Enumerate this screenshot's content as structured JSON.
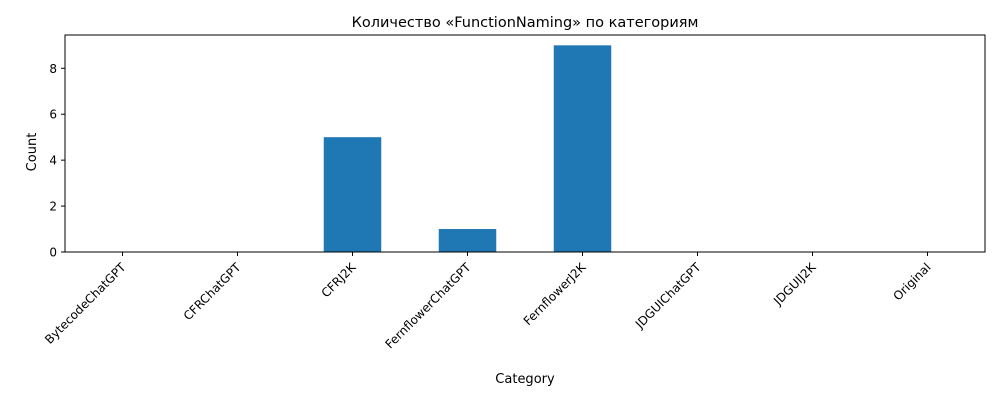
{
  "chart_data": {
    "type": "bar",
    "title": "Количество «FunctionNaming» по категориям",
    "xlabel": "Category",
    "ylabel": "Count",
    "categories": [
      "BytecodeChatGPT",
      "CFRChatGPT",
      "CFRJ2K",
      "FernflowerChatGPT",
      "FernflowerJ2K",
      "JDGUIChatGPT",
      "JDGUIJ2K",
      "Original"
    ],
    "values": [
      0,
      0,
      5,
      1,
      9,
      0,
      0,
      0
    ],
    "ylim": [
      0,
      9.45
    ],
    "yticks": [
      0,
      2,
      4,
      6,
      8
    ],
    "grid": false,
    "legend": "none",
    "bar_color": "#1f77b4"
  }
}
